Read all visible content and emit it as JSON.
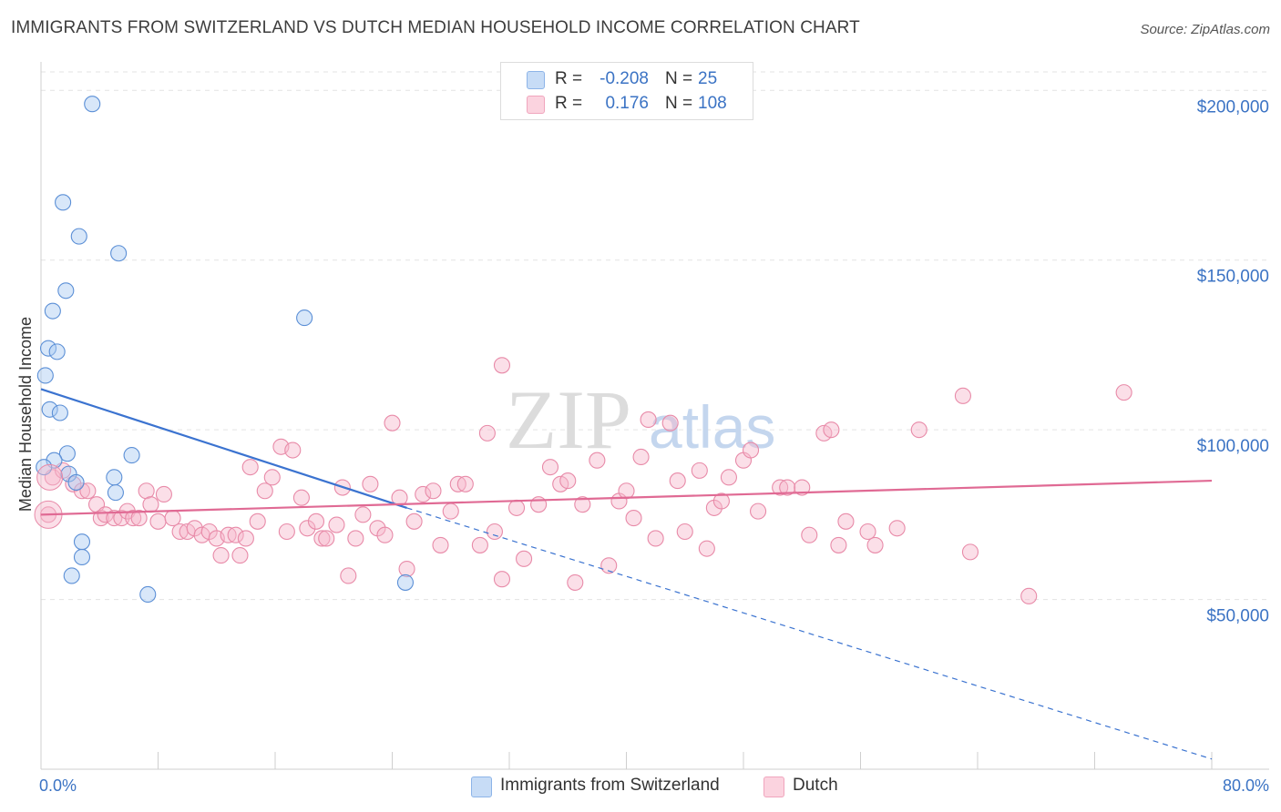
{
  "title": "IMMIGRANTS FROM SWITZERLAND VS DUTCH MEDIAN HOUSEHOLD INCOME CORRELATION CHART",
  "source": "Source: ZipAtlas.com",
  "watermark": {
    "zip": "ZIP",
    "atlas": "atlas"
  },
  "stats": {
    "r_label": "R =",
    "n_label": "N =",
    "rows": [
      {
        "r": "-0.208",
        "n": "25",
        "color": "#a9c9f2"
      },
      {
        "r": "0.176",
        "n": "108",
        "color": "#f7b9cc"
      }
    ]
  },
  "legend": [
    {
      "label": "Immigrants from Switzerland",
      "color": "#a9c9f2"
    },
    {
      "label": "Dutch",
      "color": "#f7b9cc"
    }
  ],
  "chart_data": {
    "type": "scatter",
    "title": "IMMIGRANTS FROM SWITZERLAND VS DUTCH MEDIAN HOUSEHOLD INCOME CORRELATION CHART",
    "xlabel": "",
    "ylabel": "Median Household Income",
    "xlim": [
      0,
      80
    ],
    "ylim": [
      0,
      210000
    ],
    "x_tick_labels": [
      "0.0%",
      "80.0%"
    ],
    "y_ticks": [
      50000,
      100000,
      150000,
      200000
    ],
    "y_tick_labels": [
      "$50,000",
      "$100,000",
      "$150,000",
      "$200,000"
    ],
    "grid": true,
    "legend_position": "bottom",
    "series": [
      {
        "name": "Immigrants from Switzerland",
        "color": "#a9c9f2",
        "stroke": "#5b8fd6",
        "line_color": "#3b73d0",
        "trend": {
          "x0": 0,
          "y0": 112000,
          "x1": 25,
          "y1": 77000,
          "dashed_to_x": 80,
          "dashed_to_y": 3000
        },
        "points": [
          [
            3.5,
            196000
          ],
          [
            1.5,
            167000
          ],
          [
            2.6,
            157000
          ],
          [
            5.3,
            152000
          ],
          [
            1.7,
            141000
          ],
          [
            0.8,
            135000
          ],
          [
            18.0,
            133000
          ],
          [
            0.5,
            124000
          ],
          [
            1.1,
            123000
          ],
          [
            0.3,
            116000
          ],
          [
            0.6,
            106000
          ],
          [
            1.3,
            105000
          ],
          [
            1.8,
            93000
          ],
          [
            6.2,
            92500
          ],
          [
            0.9,
            91000
          ],
          [
            1.9,
            87000
          ],
          [
            2.4,
            84500
          ],
          [
            5.0,
            86000
          ],
          [
            5.1,
            81500
          ],
          [
            2.8,
            67000
          ],
          [
            2.8,
            62500
          ],
          [
            2.1,
            57000
          ],
          [
            7.3,
            51500
          ],
          [
            24.9,
            55000
          ],
          [
            0.2,
            89000
          ]
        ]
      },
      {
        "name": "Dutch",
        "color": "#f7b9cc",
        "stroke": "#e88aa8",
        "line_color": "#e06a94",
        "trend": {
          "x0": 0,
          "y0": 75000,
          "x1": 80,
          "y1": 85000
        },
        "points": [
          [
            0.5,
            75000
          ],
          [
            0.8,
            86000
          ],
          [
            1.5,
            88000
          ],
          [
            2.2,
            84000
          ],
          [
            2.8,
            82000
          ],
          [
            3.2,
            82000
          ],
          [
            3.8,
            78000
          ],
          [
            4.1,
            74000
          ],
          [
            4.4,
            75000
          ],
          [
            5.0,
            74000
          ],
          [
            5.5,
            74000
          ],
          [
            5.9,
            76000
          ],
          [
            6.3,
            74000
          ],
          [
            6.7,
            74000
          ],
          [
            7.2,
            82000
          ],
          [
            7.5,
            78000
          ],
          [
            8.0,
            73000
          ],
          [
            8.4,
            81000
          ],
          [
            9.0,
            74000
          ],
          [
            9.5,
            70000
          ],
          [
            10.0,
            70000
          ],
          [
            10.5,
            71000
          ],
          [
            11.0,
            69000
          ],
          [
            11.5,
            70000
          ],
          [
            12.0,
            68000
          ],
          [
            12.3,
            63000
          ],
          [
            12.8,
            69000
          ],
          [
            13.3,
            69000
          ],
          [
            13.6,
            63000
          ],
          [
            14.0,
            68000
          ],
          [
            14.3,
            89000
          ],
          [
            14.8,
            73000
          ],
          [
            15.3,
            82000
          ],
          [
            15.8,
            86000
          ],
          [
            16.4,
            95000
          ],
          [
            16.8,
            70000
          ],
          [
            17.2,
            94000
          ],
          [
            17.8,
            80000
          ],
          [
            18.2,
            71000
          ],
          [
            18.8,
            73000
          ],
          [
            19.2,
            68000
          ],
          [
            19.5,
            68000
          ],
          [
            20.2,
            72000
          ],
          [
            20.6,
            83000
          ],
          [
            21.0,
            57000
          ],
          [
            21.5,
            68000
          ],
          [
            22.0,
            75000
          ],
          [
            22.5,
            84000
          ],
          [
            23.0,
            71000
          ],
          [
            23.5,
            69000
          ],
          [
            24.0,
            102000
          ],
          [
            24.5,
            80000
          ],
          [
            25.0,
            59000
          ],
          [
            25.5,
            73000
          ],
          [
            26.1,
            81000
          ],
          [
            26.8,
            82000
          ],
          [
            27.3,
            66000
          ],
          [
            28.0,
            76000
          ],
          [
            28.5,
            84000
          ],
          [
            29.0,
            84000
          ],
          [
            30.0,
            66000
          ],
          [
            30.5,
            99000
          ],
          [
            31.0,
            70000
          ],
          [
            31.5,
            119000
          ],
          [
            31.5,
            56000
          ],
          [
            32.5,
            77000
          ],
          [
            33.0,
            62000
          ],
          [
            34.0,
            78000
          ],
          [
            34.8,
            89000
          ],
          [
            35.5,
            84000
          ],
          [
            36.0,
            85000
          ],
          [
            36.5,
            55000
          ],
          [
            37.0,
            78000
          ],
          [
            38.0,
            91000
          ],
          [
            38.8,
            60000
          ],
          [
            39.5,
            79000
          ],
          [
            40.0,
            82000
          ],
          [
            40.5,
            74000
          ],
          [
            41.0,
            92000
          ],
          [
            41.5,
            103000
          ],
          [
            42.0,
            68000
          ],
          [
            43.0,
            102000
          ],
          [
            43.5,
            85000
          ],
          [
            44.0,
            70000
          ],
          [
            45.0,
            88000
          ],
          [
            45.5,
            65000
          ],
          [
            46.0,
            77000
          ],
          [
            46.5,
            79000
          ],
          [
            47.0,
            86000
          ],
          [
            48.0,
            91000
          ],
          [
            48.5,
            94000
          ],
          [
            49.0,
            76000
          ],
          [
            50.5,
            83000
          ],
          [
            51.0,
            83000
          ],
          [
            52.0,
            83000
          ],
          [
            52.5,
            69000
          ],
          [
            53.5,
            99000
          ],
          [
            54.0,
            100000
          ],
          [
            54.5,
            66000
          ],
          [
            55.0,
            73000
          ],
          [
            56.5,
            70000
          ],
          [
            57.0,
            66000
          ],
          [
            58.5,
            71000
          ],
          [
            60.0,
            100000
          ],
          [
            63.0,
            110000
          ],
          [
            63.5,
            64000
          ],
          [
            67.5,
            51000
          ],
          [
            74.0,
            111000
          ]
        ]
      }
    ]
  }
}
